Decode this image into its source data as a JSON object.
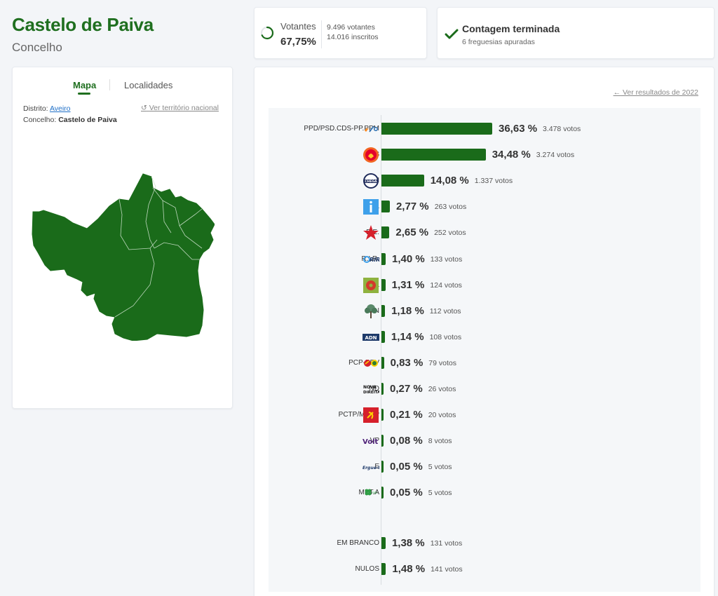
{
  "header": {
    "title": "Castelo de Paiva",
    "subtitle": "Concelho"
  },
  "voters": {
    "label": "Votantes",
    "percent": "67,75%",
    "turnout_fraction": 0.6775,
    "votantes": "9.496 votantes",
    "inscritos": "14.016 inscritos"
  },
  "count": {
    "title": "Contagem terminada",
    "sub": "6 freguesias apuradas"
  },
  "map_panel": {
    "tab_map": "Mapa",
    "tab_localities": "Localidades",
    "district_label": "Distrito:",
    "district_value": "Aveiro",
    "county_label": "Concelho:",
    "county_value": "Castelo de Paiva",
    "national_link": "Ver território nacional",
    "map_color": "#1a6b1a"
  },
  "results": {
    "prev_link": "Ver resultados de 2022",
    "bar_color": "#1a6b1a",
    "parties": [
      {
        "name": "PPD/PSD.CDS-PP.PPM",
        "pct_value": 36.63,
        "pct": "36,63 %",
        "votes": "3.478 votos",
        "logo": "ad-logo"
      },
      {
        "name": "PS",
        "pct_value": 34.48,
        "pct": "34,48 %",
        "votes": "3.274 votos",
        "logo": "ps-logo"
      },
      {
        "name": "CH",
        "pct_value": 14.08,
        "pct": "14,08 %",
        "votes": "1.337 votos",
        "logo": "chega-logo"
      },
      {
        "name": "IL",
        "pct_value": 2.77,
        "pct": "2,77 %",
        "votes": "263 votos",
        "logo": "il-logo"
      },
      {
        "name": "B.E.",
        "pct_value": 2.65,
        "pct": "2,65 %",
        "votes": "252 votos",
        "logo": "be-logo"
      },
      {
        "name": "R.I.R.",
        "pct_value": 1.4,
        "pct": "1,40 %",
        "votes": "133 votos",
        "logo": "rir-logo"
      },
      {
        "name": "L",
        "pct_value": 1.31,
        "pct": "1,31 %",
        "votes": "124 votos",
        "logo": "livre-logo"
      },
      {
        "name": "PAN",
        "pct_value": 1.18,
        "pct": "1,18 %",
        "votes": "112 votos",
        "logo": "pan-logo"
      },
      {
        "name": "ADN",
        "pct_value": 1.14,
        "pct": "1,14 %",
        "votes": "108 votos",
        "logo": "adn-logo"
      },
      {
        "name": "PCP-PEV",
        "pct_value": 0.83,
        "pct": "0,83 %",
        "votes": "79 votos",
        "logo": "cdu-logo"
      },
      {
        "name": "ND",
        "pct_value": 0.27,
        "pct": "0,27 %",
        "votes": "26 votos",
        "logo": "nd-logo"
      },
      {
        "name": "PCTP/MRPP",
        "pct_value": 0.21,
        "pct": "0,21 %",
        "votes": "20 votos",
        "logo": "pctp-logo"
      },
      {
        "name": "VP",
        "pct_value": 0.08,
        "pct": "0,08 %",
        "votes": "8 votos",
        "logo": "volt-logo"
      },
      {
        "name": "E",
        "pct_value": 0.05,
        "pct": "0,05 %",
        "votes": "5 votos",
        "logo": "ergue-te-logo"
      },
      {
        "name": "MPT.A",
        "pct_value": 0.05,
        "pct": "0,05 %",
        "votes": "5 votos",
        "logo": "mpt-logo"
      }
    ],
    "others": [
      {
        "name": "EM BRANCO",
        "pct_value": 1.38,
        "pct": "1,38 %",
        "votes": "131 votos"
      },
      {
        "name": "NULOS",
        "pct_value": 1.48,
        "pct": "1,48 %",
        "votes": "141 votos"
      }
    ]
  }
}
